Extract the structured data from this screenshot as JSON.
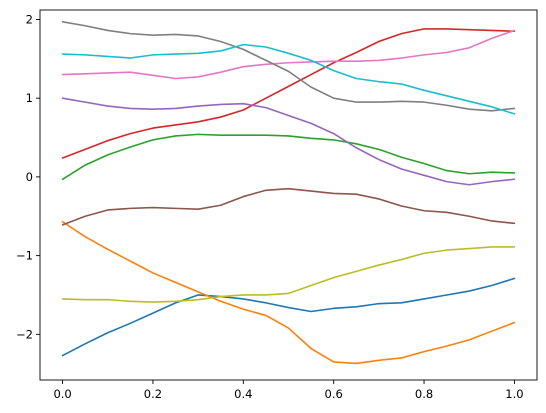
{
  "chart_data": {
    "type": "line",
    "title": "",
    "xlabel": "",
    "ylabel": "",
    "xlim": [
      -0.05,
      1.05
    ],
    "ylim": [
      -2.58,
      2.12
    ],
    "grid": false,
    "legend": "none",
    "x_ticks": [
      0.0,
      0.2,
      0.4,
      0.6,
      0.8,
      1.0
    ],
    "x_tick_labels": [
      "0.0",
      "0.2",
      "0.4",
      "0.6",
      "0.8",
      "1.0"
    ],
    "y_ticks": [
      -2,
      -1,
      0,
      1,
      2
    ],
    "y_tick_labels": [
      "−2",
      "−1",
      "0",
      "1",
      "2"
    ],
    "x": [
      0.0,
      0.05,
      0.1,
      0.15,
      0.2,
      0.25,
      0.3,
      0.35,
      0.4,
      0.45,
      0.5,
      0.55,
      0.6,
      0.65,
      0.7,
      0.75,
      0.8,
      0.85,
      0.9,
      0.95,
      1.0
    ],
    "series": [
      {
        "color": "#1f77b4",
        "values": [
          -2.27,
          -2.12,
          -1.98,
          -1.86,
          -1.73,
          -1.6,
          -1.5,
          -1.52,
          -1.55,
          -1.6,
          -1.66,
          -1.71,
          -1.67,
          -1.65,
          -1.61,
          -1.6,
          -1.55,
          -1.5,
          -1.45,
          -1.38,
          -1.29
        ]
      },
      {
        "color": "#ff7f0e",
        "values": [
          -0.57,
          -0.76,
          -0.92,
          -1.07,
          -1.22,
          -1.34,
          -1.46,
          -1.58,
          -1.68,
          -1.76,
          -1.92,
          -2.18,
          -2.35,
          -2.37,
          -2.33,
          -2.3,
          -2.22,
          -2.15,
          -2.07,
          -1.96,
          -1.85
        ]
      },
      {
        "color": "#2ca02c",
        "values": [
          -0.03,
          0.15,
          0.28,
          0.38,
          0.47,
          0.52,
          0.54,
          0.53,
          0.53,
          0.53,
          0.52,
          0.49,
          0.47,
          0.42,
          0.35,
          0.25,
          0.17,
          0.08,
          0.04,
          0.06,
          0.05
        ]
      },
      {
        "color": "#d62728",
        "values": [
          0.24,
          0.35,
          0.46,
          0.55,
          0.62,
          0.66,
          0.7,
          0.76,
          0.85,
          1.0,
          1.15,
          1.3,
          1.45,
          1.58,
          1.72,
          1.82,
          1.88,
          1.88,
          1.87,
          1.86,
          1.85
        ]
      },
      {
        "color": "#9467bd",
        "values": [
          1.0,
          0.95,
          0.9,
          0.87,
          0.86,
          0.87,
          0.9,
          0.92,
          0.93,
          0.88,
          0.78,
          0.68,
          0.55,
          0.37,
          0.22,
          0.1,
          0.02,
          -0.06,
          -0.1,
          -0.06,
          -0.03
        ]
      },
      {
        "color": "#8c564b",
        "values": [
          -0.61,
          -0.5,
          -0.42,
          -0.4,
          -0.39,
          -0.4,
          -0.41,
          -0.36,
          -0.25,
          -0.17,
          -0.15,
          -0.18,
          -0.21,
          -0.22,
          -0.28,
          -0.37,
          -0.43,
          -0.45,
          -0.5,
          -0.56,
          -0.59
        ]
      },
      {
        "color": "#e377c2",
        "values": [
          1.3,
          1.31,
          1.32,
          1.33,
          1.29,
          1.25,
          1.27,
          1.33,
          1.4,
          1.43,
          1.45,
          1.46,
          1.47,
          1.47,
          1.48,
          1.51,
          1.55,
          1.58,
          1.64,
          1.76,
          1.86
        ]
      },
      {
        "color": "#7f7f7f",
        "values": [
          1.97,
          1.92,
          1.86,
          1.82,
          1.8,
          1.81,
          1.79,
          1.72,
          1.62,
          1.48,
          1.34,
          1.14,
          1.0,
          0.95,
          0.95,
          0.96,
          0.95,
          0.91,
          0.86,
          0.84,
          0.87
        ]
      },
      {
        "color": "#bcbd22",
        "values": [
          -1.55,
          -1.56,
          -1.56,
          -1.58,
          -1.59,
          -1.58,
          -1.56,
          -1.52,
          -1.5,
          -1.5,
          -1.48,
          -1.38,
          -1.28,
          -1.2,
          -1.12,
          -1.05,
          -0.97,
          -0.93,
          -0.91,
          -0.89,
          -0.89
        ]
      },
      {
        "color": "#17becf",
        "values": [
          1.56,
          1.55,
          1.53,
          1.51,
          1.55,
          1.56,
          1.57,
          1.6,
          1.68,
          1.65,
          1.57,
          1.48,
          1.35,
          1.25,
          1.21,
          1.18,
          1.1,
          1.03,
          0.96,
          0.89,
          0.8
        ]
      }
    ]
  }
}
